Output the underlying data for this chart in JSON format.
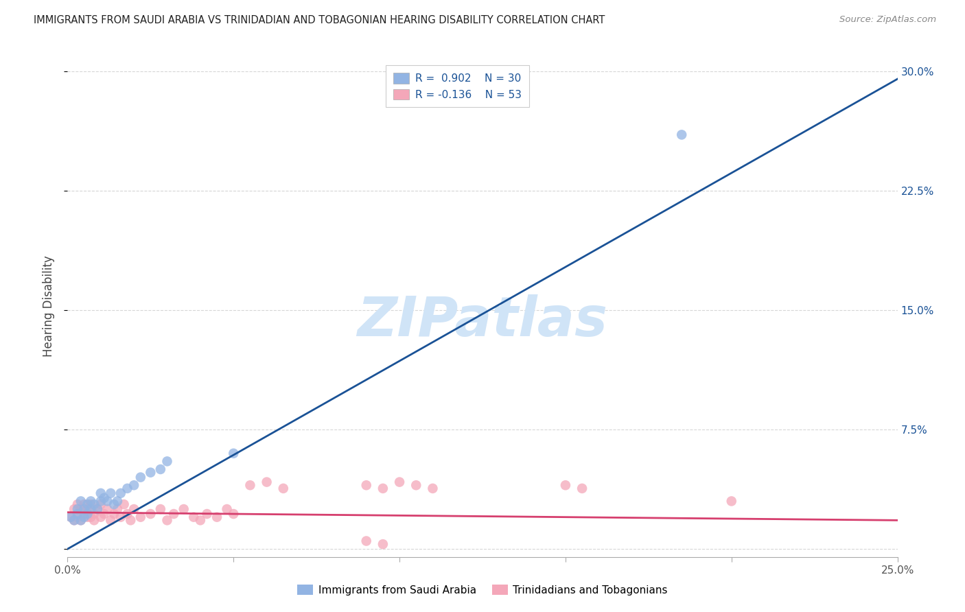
{
  "title": "IMMIGRANTS FROM SAUDI ARABIA VS TRINIDADIAN AND TOBAGONIAN HEARING DISABILITY CORRELATION CHART",
  "source": "Source: ZipAtlas.com",
  "ylabel": "Hearing Disability",
  "xlim": [
    0.0,
    0.25
  ],
  "ylim": [
    -0.005,
    0.31
  ],
  "xticks": [
    0.0,
    0.05,
    0.1,
    0.15,
    0.2,
    0.25
  ],
  "yticks": [
    0.0,
    0.075,
    0.15,
    0.225,
    0.3
  ],
  "right_ytick_labels": [
    "",
    "7.5%",
    "15.0%",
    "22.5%",
    "30.0%"
  ],
  "xtick_labels": [
    "0.0%",
    "",
    "",
    "",
    "",
    "25.0%"
  ],
  "saudi_color": "#92b4e3",
  "trini_color": "#f4a7b9",
  "blue_line_color": "#1a5296",
  "pink_line_color": "#d63f6e",
  "watermark": "ZIPatlas",
  "watermark_color": "#d0e4f7",
  "background_color": "#ffffff",
  "grid_color": "#cccccc",
  "saudi_x": [
    0.001,
    0.002,
    0.003,
    0.003,
    0.004,
    0.004,
    0.005,
    0.005,
    0.006,
    0.006,
    0.007,
    0.007,
    0.008,
    0.009,
    0.01,
    0.01,
    0.011,
    0.012,
    0.013,
    0.014,
    0.015,
    0.016,
    0.018,
    0.02,
    0.022,
    0.025,
    0.028,
    0.03,
    0.05,
    0.185
  ],
  "saudi_y": [
    0.02,
    0.018,
    0.022,
    0.025,
    0.018,
    0.03,
    0.02,
    0.025,
    0.022,
    0.028,
    0.025,
    0.03,
    0.028,
    0.025,
    0.03,
    0.035,
    0.032,
    0.03,
    0.035,
    0.028,
    0.03,
    0.035,
    0.038,
    0.04,
    0.045,
    0.048,
    0.05,
    0.055,
    0.06,
    0.26
  ],
  "trini_x": [
    0.001,
    0.002,
    0.002,
    0.003,
    0.003,
    0.004,
    0.004,
    0.005,
    0.005,
    0.006,
    0.006,
    0.007,
    0.007,
    0.008,
    0.008,
    0.009,
    0.01,
    0.01,
    0.011,
    0.012,
    0.013,
    0.014,
    0.015,
    0.016,
    0.017,
    0.018,
    0.019,
    0.02,
    0.022,
    0.025,
    0.028,
    0.03,
    0.032,
    0.035,
    0.038,
    0.04,
    0.042,
    0.045,
    0.048,
    0.05,
    0.055,
    0.06,
    0.065,
    0.09,
    0.095,
    0.1,
    0.105,
    0.11,
    0.15,
    0.155,
    0.09,
    0.095,
    0.2
  ],
  "trini_y": [
    0.02,
    0.018,
    0.025,
    0.02,
    0.028,
    0.018,
    0.025,
    0.022,
    0.028,
    0.02,
    0.025,
    0.02,
    0.028,
    0.022,
    0.018,
    0.025,
    0.02,
    0.028,
    0.022,
    0.025,
    0.018,
    0.022,
    0.025,
    0.02,
    0.028,
    0.022,
    0.018,
    0.025,
    0.02,
    0.022,
    0.025,
    0.018,
    0.022,
    0.025,
    0.02,
    0.018,
    0.022,
    0.02,
    0.025,
    0.022,
    0.04,
    0.042,
    0.038,
    0.04,
    0.038,
    0.042,
    0.04,
    0.038,
    0.04,
    0.038,
    0.005,
    0.003,
    0.03
  ],
  "blue_line_x": [
    0.0,
    0.25
  ],
  "blue_line_y": [
    0.0,
    0.295
  ],
  "pink_line_x": [
    0.0,
    0.25
  ],
  "pink_line_y": [
    0.023,
    0.018
  ]
}
